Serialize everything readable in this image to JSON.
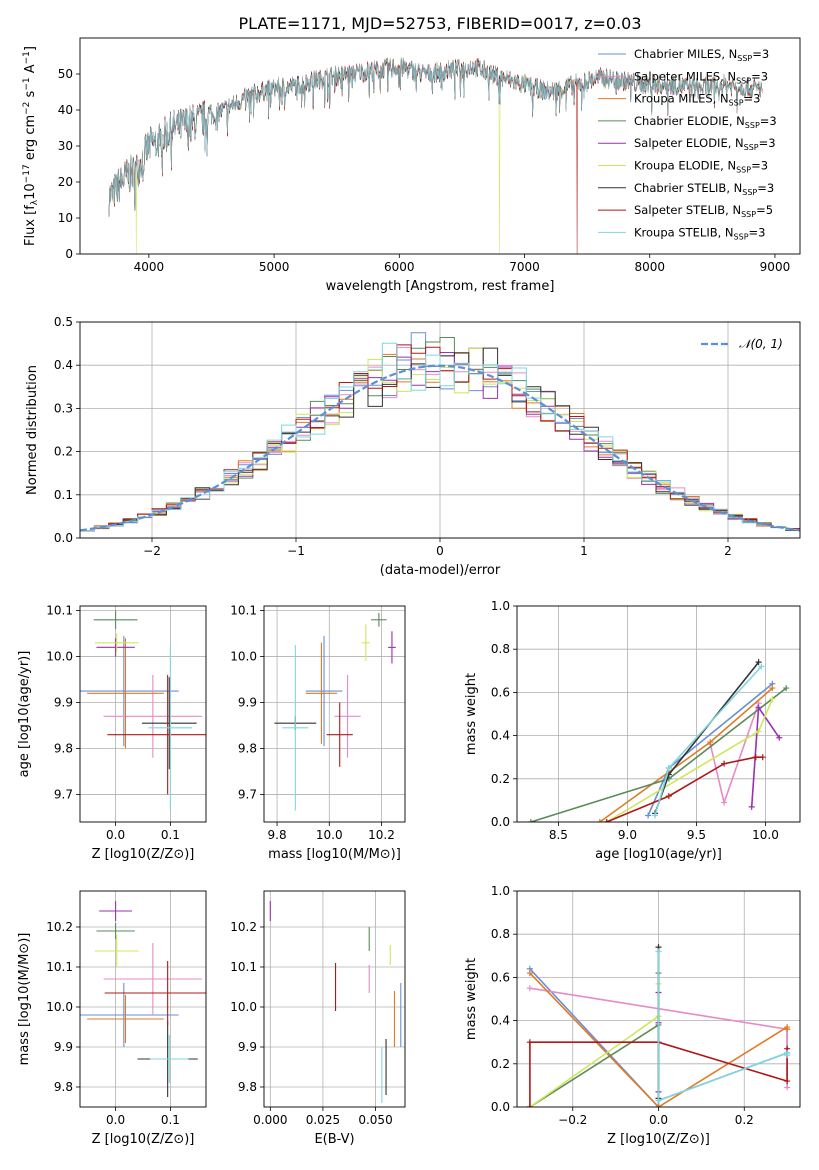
{
  "figure_title": "PLATE=1171, MJD=52753, FIBERID=0017, z=0.03",
  "colors": {
    "Chabrier MILES": "#6a8fd6",
    "Salpeter MILES": "#e88ac7",
    "Kroupa MILES": "#e07b24",
    "Chabrier ELODIE": "#5a8a5a",
    "Salpeter ELODIE": "#9b30b0",
    "Kroupa ELODIE": "#cce85a",
    "Chabrier STELIB": "#333333",
    "Salpeter STELIB": "#b01818",
    "Kroupa STELIB": "#7fd6e0",
    "normal": "#5b8fd6",
    "grid": "#b0b0b0"
  },
  "chart_data": [
    {
      "id": "spectrum",
      "type": "line",
      "xlabel": "wavelength [Angstrom, rest frame]",
      "ylabel": "Flux [f_λ10^-17 erg cm^-2 s^-1 A^-1]",
      "xlim": [
        3450,
        9200
      ],
      "ylim": [
        0,
        60
      ],
      "xticks": [
        "4000",
        "5000",
        "6000",
        "7000",
        "8000",
        "9000"
      ],
      "yticks": [
        "0",
        "10",
        "20",
        "30",
        "40",
        "50"
      ],
      "grid": false,
      "legend_position": "top-right",
      "series": [
        {
          "name": "Chabrier MILES, N_SSP=3"
        },
        {
          "name": "Salpeter MILES, N_SSP=3"
        },
        {
          "name": "Kroupa MILES, N_SSP=3"
        },
        {
          "name": "Chabrier ELODIE, N_SSP=3"
        },
        {
          "name": "Salpeter ELODIE, N_SSP=3"
        },
        {
          "name": "Kroupa ELODIE, N_SSP=3"
        },
        {
          "name": "Chabrier STELIB, N_SSP=3"
        },
        {
          "name": "Salpeter STELIB, N_SSP=5"
        },
        {
          "name": "Kroupa STELIB, N_SSP=3"
        }
      ],
      "continuum": {
        "x": [
          3700,
          3800,
          3900,
          4000,
          4100,
          4200,
          4400,
          4600,
          4800,
          5000,
          5200,
          5400,
          5600,
          5800,
          6000,
          6200,
          6400,
          6600,
          6800,
          7000,
          7200,
          7400,
          7600,
          7800,
          8000,
          8200,
          8400,
          8600,
          8800,
          9000
        ],
        "y": [
          16,
          21,
          23,
          30,
          32,
          35,
          37,
          40,
          44,
          46,
          47,
          49,
          50,
          51,
          52,
          50,
          51,
          52,
          49,
          47,
          45,
          47,
          49,
          48,
          47,
          47,
          46,
          47,
          46,
          46
        ]
      },
      "features": [
        {
          "series": "Kroupa ELODIE",
          "x": 6800,
          "y": 0
        },
        {
          "series": "Salpeter STELIB",
          "x": 7420,
          "y": 0
        },
        {
          "series": "Kroupa ELODIE",
          "x": 3900,
          "y": 0
        }
      ]
    },
    {
      "id": "residuals",
      "type": "histogram",
      "xlabel": "(data-model)/error",
      "ylabel": "Normed distribution",
      "xlim": [
        -2.5,
        2.5
      ],
      "ylim": [
        0,
        0.5
      ],
      "xticks": [
        "−2",
        "−1",
        "0",
        "1",
        "2"
      ],
      "yticks": [
        "0.0",
        "0.1",
        "0.2",
        "0.3",
        "0.4",
        "0.5"
      ],
      "grid": true,
      "legend_position": "top-right",
      "reference_curve": {
        "name": "𝒩(0, 1)",
        "mean": 0,
        "sigma": 1
      },
      "bin_width": 0.1
    },
    {
      "id": "age_vs_Z",
      "type": "scatter",
      "xlabel": "Z [log10(Z/Z⊙)]",
      "ylabel": "age [log10(age/yr)]",
      "xlim": [
        -0.065,
        0.165
      ],
      "ylim": [
        9.64,
        10.11
      ],
      "xticks": [
        "0.0",
        "0.1"
      ],
      "yticks": [
        "9.7",
        "9.8",
        "9.9",
        "10.0",
        "10.1"
      ],
      "grid": true,
      "points": [
        {
          "series": "Chabrier MILES",
          "x": 0.015,
          "y": 9.925,
          "xerr": 0.1,
          "yerr": 0.12
        },
        {
          "series": "Salpeter MILES",
          "x": 0.068,
          "y": 9.87,
          "xerr": 0.09,
          "yerr": 0.09
        },
        {
          "series": "Kroupa MILES",
          "x": 0.018,
          "y": 9.92,
          "xerr": 0.07,
          "yerr": 0.12
        },
        {
          "series": "Chabrier ELODIE",
          "x": 0.0,
          "y": 10.08,
          "xerr": 0.04,
          "yerr": 0.02
        },
        {
          "series": "Salpeter ELODIE",
          "x": 0.0,
          "y": 10.02,
          "xerr": 0.035,
          "yerr": 0.02
        },
        {
          "series": "Kroupa ELODIE",
          "x": 0.002,
          "y": 10.03,
          "xerr": 0.04,
          "yerr": 0.02
        },
        {
          "series": "Chabrier STELIB",
          "x": 0.098,
          "y": 9.855,
          "xerr": 0.05,
          "yerr": 0.1
        },
        {
          "series": "Salpeter STELIB",
          "x": 0.095,
          "y": 9.83,
          "xerr": 0.11,
          "yerr": 0.13
        },
        {
          "series": "Kroupa STELIB",
          "x": 0.1,
          "y": 9.845,
          "xerr": 0.04,
          "yerr": 0.18
        }
      ]
    },
    {
      "id": "age_vs_mass",
      "type": "scatter",
      "xlabel": "mass [log10(M/M⊙)]",
      "ylabel": "",
      "xlim": [
        9.75,
        10.29
      ],
      "ylim": [
        9.64,
        10.11
      ],
      "xticks": [
        "9.8",
        "10.0",
        "10.2"
      ],
      "yticks": [
        "9.7",
        "9.8",
        "9.9",
        "10.0",
        "10.1"
      ],
      "grid": true,
      "points": [
        {
          "series": "Chabrier MILES",
          "x": 9.98,
          "y": 9.925,
          "xerr": 0.07,
          "yerr": 0.12
        },
        {
          "series": "Salpeter MILES",
          "x": 10.07,
          "y": 9.87,
          "xerr": 0.05,
          "yerr": 0.09
        },
        {
          "series": "Kroupa MILES",
          "x": 9.97,
          "y": 9.92,
          "xerr": 0.06,
          "yerr": 0.11
        },
        {
          "series": "Chabrier ELODIE",
          "x": 10.19,
          "y": 10.08,
          "xerr": 0.03,
          "yerr": 0.015
        },
        {
          "series": "Salpeter ELODIE",
          "x": 10.24,
          "y": 10.02,
          "xerr": 0.015,
          "yerr": 0.035
        },
        {
          "series": "Kroupa ELODIE",
          "x": 10.14,
          "y": 10.03,
          "xerr": 0.015,
          "yerr": 0.04
        },
        {
          "series": "Chabrier STELIB",
          "x": 9.87,
          "y": 9.855,
          "xerr": 0.08,
          "yerr": 0.015
        },
        {
          "series": "Salpeter STELIB",
          "x": 10.04,
          "y": 9.83,
          "xerr": 0.05,
          "yerr": 0.07
        },
        {
          "series": "Kroupa STELIB",
          "x": 9.87,
          "y": 9.845,
          "xerr": 0.05,
          "yerr": 0.18
        }
      ]
    },
    {
      "id": "massweight_vs_age",
      "type": "line",
      "xlabel": "age [log10(age/yr)]",
      "ylabel": "mass weight",
      "xlim": [
        8.2,
        10.25
      ],
      "ylim": [
        0,
        1
      ],
      "xticks": [
        "8.5",
        "9.0",
        "9.5",
        "10.0"
      ],
      "yticks": [
        "0.0",
        "0.2",
        "0.4",
        "0.6",
        "0.8",
        "1.0"
      ],
      "grid": true,
      "series": [
        {
          "series": "Chabrier MILES",
          "x": [
            9.15,
            9.3,
            10.05
          ],
          "y": [
            0.03,
            0.25,
            0.64
          ]
        },
        {
          "series": "Salpeter MILES",
          "x": [
            9.6,
            9.7,
            9.95
          ],
          "y": [
            0.36,
            0.09,
            0.55
          ]
        },
        {
          "series": "Kroupa MILES",
          "x": [
            8.8,
            9.6,
            10.05
          ],
          "y": [
            0.0,
            0.37,
            0.62
          ]
        },
        {
          "series": "Chabrier ELODIE",
          "x": [
            8.3,
            9.3,
            10.15
          ],
          "y": [
            0.0,
            0.2,
            0.62
          ]
        },
        {
          "series": "Salpeter ELODIE",
          "x": [
            9.9,
            9.95,
            10.1
          ],
          "y": [
            0.07,
            0.53,
            0.39
          ]
        },
        {
          "series": "Kroupa ELODIE",
          "x": [
            8.85,
            9.95,
            10.05
          ],
          "y": [
            0.0,
            0.42,
            0.57
          ]
        },
        {
          "series": "Chabrier STELIB",
          "x": [
            9.2,
            9.3,
            9.95
          ],
          "y": [
            0.04,
            0.22,
            0.74
          ]
        },
        {
          "series": "Salpeter STELIB",
          "x": [
            8.85,
            9.3,
            9.7,
            9.93,
            9.98
          ],
          "y": [
            0.0,
            0.12,
            0.27,
            0.3,
            0.3
          ]
        },
        {
          "series": "Kroupa STELIB",
          "x": [
            9.2,
            9.3,
            9.97
          ],
          "y": [
            0.03,
            0.25,
            0.72
          ]
        }
      ]
    },
    {
      "id": "mass_vs_Z",
      "type": "scatter",
      "xlabel": "Z [log10(Z/Z⊙)]",
      "ylabel": "mass [log10(M/M⊙)]",
      "xlim": [
        -0.065,
        0.165
      ],
      "ylim": [
        9.75,
        10.29
      ],
      "xticks": [
        "0.0",
        "0.1"
      ],
      "yticks": [
        "9.8",
        "9.9",
        "10.0",
        "10.1",
        "10.2"
      ],
      "grid": true,
      "points": [
        {
          "series": "Chabrier MILES",
          "x": 0.015,
          "y": 9.98,
          "xerr": 0.1,
          "yerr": 0.08
        },
        {
          "series": "Salpeter MILES",
          "x": 0.068,
          "y": 10.07,
          "xerr": 0.09,
          "yerr": 0.09
        },
        {
          "series": "Kroupa MILES",
          "x": 0.018,
          "y": 9.97,
          "xerr": 0.07,
          "yerr": 0.06
        },
        {
          "series": "Chabrier ELODIE",
          "x": 0.0,
          "y": 10.19,
          "xerr": 0.035,
          "yerr": 0.02
        },
        {
          "series": "Salpeter ELODIE",
          "x": 0.0,
          "y": 10.24,
          "xerr": 0.03,
          "yerr": 0.025
        },
        {
          "series": "Kroupa ELODIE",
          "x": 0.002,
          "y": 10.14,
          "xerr": 0.04,
          "yerr": 0.04
        },
        {
          "series": "Chabrier STELIB",
          "x": 0.095,
          "y": 9.87,
          "xerr": 0.055,
          "yerr": 0.095
        },
        {
          "series": "Salpeter STELIB",
          "x": 0.095,
          "y": 10.035,
          "xerr": 0.115,
          "yerr": 0.08
        },
        {
          "series": "Kroupa STELIB",
          "x": 0.098,
          "y": 9.87,
          "xerr": 0.035,
          "yerr": 0.06
        }
      ]
    },
    {
      "id": "mass_vs_ebv",
      "type": "scatter",
      "xlabel": "E(B-V)",
      "ylabel": "",
      "xlim": [
        -0.003,
        0.064
      ],
      "ylim": [
        9.75,
        10.29
      ],
      "xticks": [
        "0.000",
        "0.025",
        "0.050"
      ],
      "yticks": [
        "9.8",
        "9.9",
        "10.0",
        "10.1",
        "10.2"
      ],
      "grid": true,
      "points": [
        {
          "series": "Chabrier MILES",
          "x": 0.062,
          "y": 9.98,
          "xerr": 0.0,
          "yerr": 0.08
        },
        {
          "series": "Salpeter MILES",
          "x": 0.047,
          "y": 10.07,
          "xerr": 0.0,
          "yerr": 0.035
        },
        {
          "series": "Kroupa MILES",
          "x": 0.059,
          "y": 9.97,
          "xerr": 0.0,
          "yerr": 0.07
        },
        {
          "series": "Chabrier ELODIE",
          "x": 0.047,
          "y": 10.17,
          "xerr": 0.0,
          "yerr": 0.03
        },
        {
          "series": "Salpeter ELODIE",
          "x": 0.0,
          "y": 10.24,
          "xerr": 0.0,
          "yerr": 0.025
        },
        {
          "series": "Kroupa ELODIE",
          "x": 0.057,
          "y": 10.13,
          "xerr": 0.0,
          "yerr": 0.025
        },
        {
          "series": "Chabrier STELIB",
          "x": 0.055,
          "y": 9.85,
          "xerr": 0.0,
          "yerr": 0.07
        },
        {
          "series": "Salpeter STELIB",
          "x": 0.031,
          "y": 10.05,
          "xerr": 0.0,
          "yerr": 0.06
        },
        {
          "series": "Kroupa STELIB",
          "x": 0.053,
          "y": 9.83,
          "xerr": 0.0,
          "yerr": 0.07
        }
      ]
    },
    {
      "id": "massweight_vs_Z",
      "type": "line",
      "xlabel": "Z [log10(Z/Z⊙)]",
      "ylabel": "mass weight",
      "xlim": [
        -0.33,
        0.33
      ],
      "ylim": [
        0,
        1
      ],
      "xticks": [
        "−0.2",
        "0.0",
        "0.2"
      ],
      "yticks": [
        "0.0",
        "0.2",
        "0.4",
        "0.6",
        "0.8",
        "1.0"
      ],
      "grid": true,
      "series": [
        {
          "series": "Chabrier MILES",
          "x": [
            -0.3,
            0.0,
            0.0,
            0.3,
            0.3
          ],
          "y": [
            0.64,
            0.0,
            0.03,
            0.25,
            0.36
          ]
        },
        {
          "series": "Salpeter MILES",
          "x": [
            -0.3,
            0.3,
            0.3
          ],
          "y": [
            0.55,
            0.36,
            0.09
          ]
        },
        {
          "series": "Kroupa MILES",
          "x": [
            -0.3,
            0.0,
            0.3,
            0.3
          ],
          "y": [
            0.62,
            0.0,
            0.37,
            0.36
          ]
        },
        {
          "series": "Chabrier ELODIE",
          "x": [
            -0.3,
            0.0,
            0.0
          ],
          "y": [
            0.0,
            0.38,
            0.62
          ]
        },
        {
          "series": "Salpeter ELODIE",
          "x": [
            0.0,
            0.0,
            0.0
          ],
          "y": [
            0.07,
            0.53,
            0.39
          ]
        },
        {
          "series": "Kroupa ELODIE",
          "x": [
            -0.3,
            0.0,
            0.0
          ],
          "y": [
            0.0,
            0.42,
            0.57
          ]
        },
        {
          "series": "Chabrier STELIB",
          "x": [
            0.0,
            0.0
          ],
          "y": [
            0.04,
            0.74
          ]
        },
        {
          "series": "Salpeter STELIB",
          "x": [
            -0.3,
            -0.3,
            0.0,
            0.3,
            0.3
          ],
          "y": [
            0.0,
            0.3,
            0.3,
            0.12,
            0.27
          ]
        },
        {
          "series": "Kroupa STELIB",
          "x": [
            0.0,
            0.0,
            0.3,
            0.3
          ],
          "y": [
            0.72,
            0.03,
            0.25,
            0.24
          ]
        }
      ]
    }
  ]
}
